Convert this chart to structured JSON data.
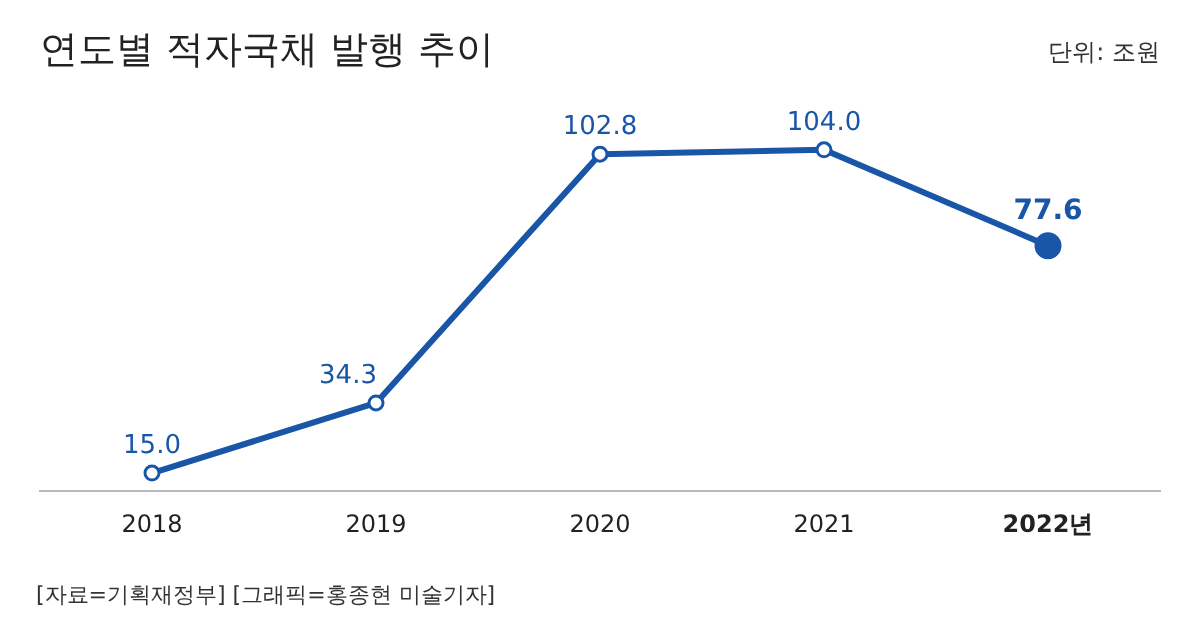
{
  "chart_data": {
    "type": "line",
    "title": "연도별 적자국채 발행 추이",
    "annotations": [
      "단위: 조원",
      "[자료=기획재정부] [그래픽=홍종현 미술기자]"
    ],
    "categories": [
      "2018",
      "2019",
      "2020",
      "2021",
      "2022년"
    ],
    "series": [
      {
        "color": "#1a56a8",
        "values": [
          15.0,
          34.3,
          102.8,
          104.0,
          77.6
        ],
        "value_labels": [
          "15.0",
          "34.3",
          "102.8",
          "104.0",
          "77.6"
        ]
      }
    ],
    "marker": "circle",
    "line_style": "solid",
    "legend": false,
    "grid": false,
    "tick_labels": "x"
  }
}
